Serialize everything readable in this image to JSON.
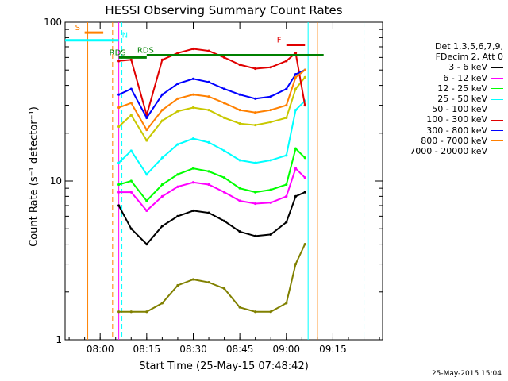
{
  "chart_data": {
    "type": "line",
    "title": "HESSI Observing Summary Count Rates",
    "xlabel": "Start Time (25-May-15 07:48:42)",
    "ylabel": "Count Rate (s⁻¹ detector⁻¹)",
    "yscale": "log",
    "ylim": [
      1,
      100
    ],
    "xlim": [
      "07:48:42",
      "09:31:00"
    ],
    "x_ticks": [
      "08:00",
      "08:15",
      "08:30",
      "08:45",
      "09:00",
      "09:15"
    ],
    "y_ticks": [
      "1",
      "10",
      "100"
    ],
    "grid": false,
    "legend_position": "right",
    "legend_header": [
      "Det 1,3,5,6,7,9,",
      "FDecim 2, Att 0"
    ],
    "x": [
      "08:06",
      "08:10",
      "08:15",
      "08:20",
      "08:25",
      "08:30",
      "08:35",
      "08:40",
      "08:45",
      "08:50",
      "08:55",
      "09:00",
      "09:03",
      "09:06"
    ],
    "series": [
      {
        "name": "3 - 6 keV",
        "color": "#000000",
        "values": [
          7.0,
          5.0,
          4.0,
          5.2,
          6.0,
          6.5,
          6.3,
          5.6,
          4.8,
          4.5,
          4.6,
          5.5,
          8.0,
          8.5
        ]
      },
      {
        "name": "6 - 12 keV",
        "color": "#ff00ff",
        "values": [
          8.5,
          8.5,
          6.5,
          8.0,
          9.2,
          9.8,
          9.5,
          8.5,
          7.5,
          7.2,
          7.3,
          8.0,
          12.0,
          10.5
        ]
      },
      {
        "name": "12 - 25 keV",
        "color": "#00ff00",
        "values": [
          9.5,
          10.0,
          7.5,
          9.5,
          11.0,
          12.0,
          11.5,
          10.5,
          9.0,
          8.5,
          8.8,
          9.5,
          16.0,
          14.0
        ]
      },
      {
        "name": "25 - 50 keV",
        "color": "#00ffff",
        "values": [
          13.0,
          15.5,
          11.0,
          14.0,
          17.0,
          18.5,
          17.5,
          15.5,
          13.5,
          13.0,
          13.5,
          14.5,
          28.0,
          32.0
        ]
      },
      {
        "name": "50 - 100 keV",
        "color": "#c8c800",
        "values": [
          22.0,
          26.0,
          18.0,
          24.0,
          27.5,
          29.0,
          28.0,
          25.0,
          23.0,
          22.5,
          23.5,
          25.0,
          38.0,
          45.0
        ]
      },
      {
        "name": "100 - 300 keV",
        "color": "#e00000",
        "values": [
          57.0,
          58.0,
          26.0,
          58.0,
          64.0,
          68.0,
          66.0,
          60.0,
          54.0,
          51.0,
          52.0,
          57.0,
          64.0,
          30.0
        ]
      },
      {
        "name": "300 - 800 keV",
        "color": "#0000ff",
        "values": [
          35.0,
          38.0,
          25.0,
          35.0,
          41.0,
          44.0,
          42.0,
          38.0,
          35.0,
          33.0,
          34.0,
          38.0,
          47.0,
          50.0
        ]
      },
      {
        "name": "800 - 7000 keV",
        "color": "#ff8000",
        "values": [
          29.0,
          31.0,
          21.0,
          28.0,
          33.0,
          35.0,
          34.0,
          31.0,
          28.0,
          27.0,
          28.0,
          30.0,
          45.0,
          50.0
        ]
      },
      {
        "name": "7000 - 20000 keV",
        "color": "#808000",
        "values": [
          1.5,
          1.5,
          1.5,
          1.7,
          2.2,
          2.4,
          2.3,
          2.1,
          1.6,
          1.5,
          1.5,
          1.7,
          3.0,
          4.0
        ]
      }
    ],
    "annotations": [
      {
        "text": "S",
        "color": "#ff8000",
        "x_start": "07:55",
        "x_end": "08:01",
        "y": 86
      },
      {
        "text": "N",
        "color": "#00ffff",
        "x_start": "07:48:42",
        "x_end": "08:06",
        "y": 77
      },
      {
        "text": "F",
        "color": "#e00000",
        "x_start": "09:00",
        "x_end": "09:06",
        "y": 72
      },
      {
        "text": "RDS",
        "color": "#008000",
        "x_start": "08:06",
        "x_end": "08:15",
        "y": 60
      },
      {
        "text": "RDS",
        "color": "#008000",
        "x_start": "08:15",
        "x_end": "09:12",
        "y": 62
      }
    ],
    "vertical_markers": [
      {
        "x": "07:56",
        "color": "#ff8000",
        "style": "solid"
      },
      {
        "x": "08:04",
        "color": "#ff8000",
        "style": "dashed"
      },
      {
        "x": "08:06",
        "color": "#ff00ff",
        "style": "solid"
      },
      {
        "x": "08:07",
        "color": "#00ffff",
        "style": "dashed"
      },
      {
        "x": "09:07",
        "color": "#00ffff",
        "style": "solid"
      },
      {
        "x": "09:10",
        "color": "#ff8000",
        "style": "solid"
      },
      {
        "x": "09:25",
        "color": "#00ffff",
        "style": "dashed"
      }
    ]
  },
  "footer_date": "25-May-2015 15:04"
}
